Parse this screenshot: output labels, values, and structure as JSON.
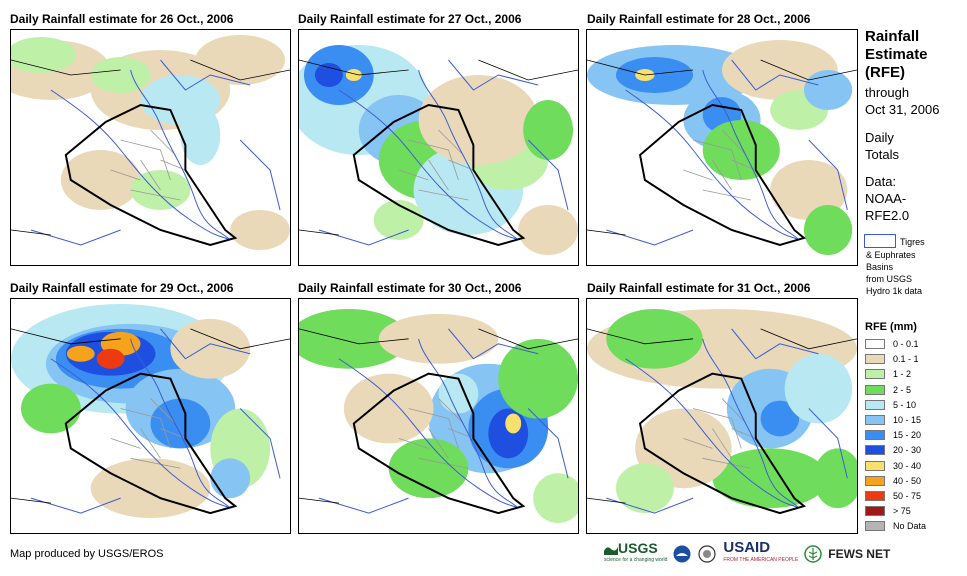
{
  "panels": [
    {
      "title": "Daily Rainfall estimate for 26 Oct., 2006"
    },
    {
      "title": "Daily Rainfall estimate for 27 Oct., 2006"
    },
    {
      "title": "Daily Rainfall estimate for 28 Oct., 2006"
    },
    {
      "title": "Daily Rainfall estimate for 29 Oct., 2006"
    },
    {
      "title": "Daily Rainfall estimate for 30 Oct., 2006"
    },
    {
      "title": "Daily Rainfall estimate for 31 Oct., 2006"
    }
  ],
  "side": {
    "title_lines": [
      "Rainfall",
      "Estimate",
      "(RFE)"
    ],
    "through": "through",
    "date": "Oct 31, 2006",
    "daily": "Daily",
    "totals": "Totals",
    "data_label": "Data:",
    "source1": "NOAA-",
    "source2": "RFE2.0"
  },
  "basin_note": {
    "line1": "Tigres",
    "line2": "& Euphrates",
    "line3": "Basins",
    "line4": "from USGS",
    "line5": "Hydro 1k data"
  },
  "legend": {
    "title": "RFE (mm)",
    "items": [
      {
        "label": "0 - 0.1",
        "color": "#ffffff"
      },
      {
        "label": "0.1 - 1",
        "color": "#e9d9b8"
      },
      {
        "label": "1 - 2",
        "color": "#bff0a8"
      },
      {
        "label": "2 - 5",
        "color": "#6fdc5c"
      },
      {
        "label": "5 - 10",
        "color": "#b8e8f2"
      },
      {
        "label": "10 - 15",
        "color": "#86c4f4"
      },
      {
        "label": "15 - 20",
        "color": "#3a8ef2"
      },
      {
        "label": "20 - 30",
        "color": "#1e4fe0"
      },
      {
        "label": "30 - 40",
        "color": "#f8e06c"
      },
      {
        "label": "40 - 50",
        "color": "#f5a21c"
      },
      {
        "label": "50 - 75",
        "color": "#ee3a10"
      },
      {
        "label": "> 75",
        "color": "#a01818"
      },
      {
        "label": "No Data",
        "color": "#b4b4b4"
      }
    ]
  },
  "credit": "Map produced by USGS/EROS",
  "logos": {
    "usgs": "USGS",
    "usgs_tagline": "science for a changing world",
    "usaid": "USAID",
    "usaid_tagline": "FROM THE AMERICAN PEOPLE",
    "fews": "FEWS NET"
  }
}
